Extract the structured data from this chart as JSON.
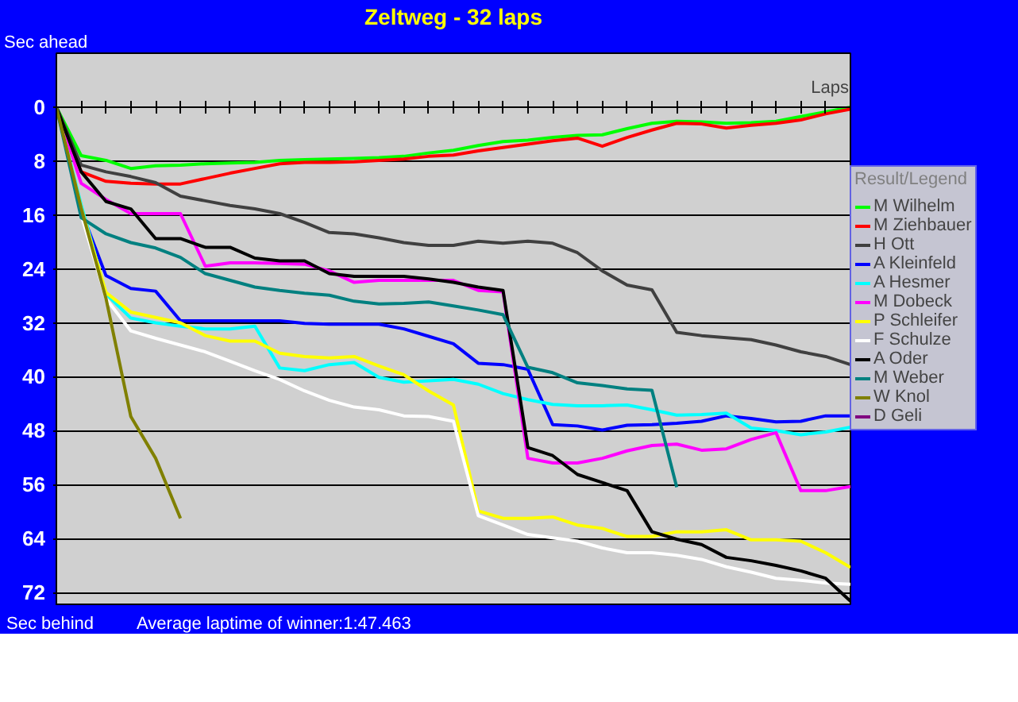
{
  "chart_data": {
    "type": "line",
    "title": "Zeltweg - 32 laps",
    "ylabel": "Sec ahead",
    "xlabel": "Laps",
    "legend_title": "Result/Legend",
    "annotations": [
      "Sec behind",
      "Average laptime of winner:1:47.463"
    ],
    "categories": [
      null,
      null,
      null,
      null,
      null,
      null,
      null,
      null,
      null,
      null,
      null,
      null,
      null,
      null,
      null,
      null,
      null,
      null,
      null,
      null,
      null,
      null,
      null,
      null,
      null,
      null,
      null,
      null,
      null,
      null,
      null,
      null,
      null
    ],
    "ylim": [
      74,
      -8
    ],
    "yticks": [
      0,
      8,
      16,
      24,
      32,
      40,
      48,
      56,
      64,
      72
    ],
    "grid": "y",
    "legend": "right",
    "tick_labels": "y",
    "marker": "none",
    "line_style": "solid",
    "series": [
      {
        "name": "M Wilhelm",
        "color": "#00ff00",
        "values": [
          0,
          7.2,
          7.9,
          9.1,
          8.7,
          8.6,
          8.4,
          8.3,
          8.2,
          7.9,
          7.8,
          7.7,
          7.6,
          7.5,
          7.3,
          6.8,
          6.4,
          5.7,
          5.1,
          4.9,
          4.5,
          4.2,
          4.1,
          3.2,
          2.4,
          2.1,
          2.2,
          2.4,
          2.3,
          2.1,
          1.4,
          0.7,
          0
        ]
      },
      {
        "name": "M Ziehbauer",
        "color": "#ff0000",
        "values": [
          0,
          9.6,
          11.0,
          11.3,
          11.4,
          11.4,
          10.6,
          9.8,
          9.1,
          8.4,
          8.2,
          8.2,
          8.1,
          7.9,
          7.7,
          7.3,
          7.1,
          6.5,
          6.0,
          5.5,
          5.0,
          4.6,
          5.8,
          4.5,
          3.4,
          2.4,
          2.5,
          3.1,
          2.7,
          2.4,
          1.9,
          1.0,
          0.3
        ]
      },
      {
        "name": "H Ott",
        "color": "#404040",
        "values": [
          0,
          8.6,
          9.6,
          10.3,
          11.2,
          13.2,
          13.9,
          14.6,
          15.1,
          15.8,
          17.1,
          18.6,
          18.8,
          19.4,
          20.1,
          20.5,
          20.5,
          19.9,
          20.2,
          19.9,
          20.2,
          21.6,
          24.3,
          26.4,
          27.1,
          33.4,
          33.9,
          34.2,
          34.5,
          35.3,
          36.3,
          37.0,
          38.2
        ]
      },
      {
        "name": "A Kleinfeld",
        "color": "#0000ff",
        "values": [
          0,
          15.4,
          25.0,
          26.9,
          27.3,
          31.7,
          31.7,
          31.7,
          31.7,
          31.7,
          32.1,
          32.2,
          32.2,
          32.2,
          32.9,
          34.0,
          35.1,
          38.0,
          38.2,
          38.9,
          47.1,
          47.3,
          47.9,
          47.2,
          47.1,
          46.9,
          46.6,
          45.8,
          46.2,
          46.7,
          46.6,
          45.8,
          45.8
        ]
      },
      {
        "name": "A Hesmer",
        "color": "#00ffff",
        "values": [
          0,
          14.5,
          27.7,
          31.3,
          32.0,
          32.5,
          32.9,
          32.9,
          32.5,
          38.7,
          39.1,
          38.2,
          37.9,
          40.1,
          40.8,
          40.6,
          40.4,
          41.1,
          42.5,
          43.4,
          44.1,
          44.3,
          44.3,
          44.2,
          44.9,
          45.7,
          45.6,
          45.4,
          47.6,
          48.0,
          48.6,
          48.2,
          47.5
        ]
      },
      {
        "name": "M Dobeck",
        "color": "#ff00ff",
        "values": [
          0,
          11.3,
          13.7,
          15.8,
          15.8,
          15.8,
          23.6,
          23.1,
          23.1,
          23.2,
          23.3,
          24.3,
          26.0,
          25.7,
          25.7,
          25.7,
          25.7,
          27.2,
          27.4,
          52.1,
          52.8,
          52.8,
          52.1,
          51.0,
          50.2,
          50.0,
          50.9,
          50.7,
          49.3,
          48.3,
          56.9,
          56.9,
          56.3
        ]
      },
      {
        "name": "P Schleifer",
        "color": "#ffff00",
        "values": [
          0,
          15,
          27.5,
          30.4,
          31.2,
          32.0,
          33.9,
          34.7,
          34.7,
          36.5,
          37.0,
          37.2,
          37.0,
          38.4,
          39.7,
          42.1,
          44.2,
          59.9,
          61.0,
          61.0,
          60.8,
          62.0,
          62.5,
          63.7,
          63.7,
          63.0,
          63.0,
          62.7,
          64.2,
          64.2,
          64.4,
          66.1,
          68.3
        ]
      },
      {
        "name": "F Schulze",
        "color": "#ffffff",
        "values": [
          0,
          16,
          28.4,
          33.2,
          34.3,
          35.3,
          36.3,
          37.7,
          39.1,
          40.4,
          42.1,
          43.5,
          44.5,
          44.9,
          45.8,
          45.9,
          46.6,
          60.6,
          62.0,
          63.4,
          63.9,
          64.4,
          65.4,
          66.1,
          66.1,
          66.5,
          67.1,
          68.2,
          69.0,
          69.9,
          70.2,
          70.6,
          70.8
        ]
      },
      {
        "name": "A Oder",
        "color": "#000000",
        "values": [
          0,
          9.6,
          14.0,
          15.1,
          19.5,
          19.5,
          20.8,
          20.8,
          22.4,
          22.8,
          22.8,
          24.7,
          25.1,
          25.1,
          25.1,
          25.5,
          26.0,
          26.7,
          27.2,
          50.5,
          51.7,
          54.5,
          55.7,
          56.9,
          63.0,
          64.1,
          64.9,
          66.8,
          67.3,
          68.0,
          68.8,
          69.9,
          73.3
        ]
      },
      {
        "name": "M Weber",
        "color": "#008080",
        "values": [
          0,
          16.4,
          18.8,
          20.1,
          20.9,
          22.3,
          24.7,
          25.7,
          26.7,
          27.2,
          27.6,
          27.9,
          28.8,
          29.2,
          29.1,
          28.9,
          29.5,
          30.1,
          30.8,
          38.6,
          39.4,
          40.9,
          41.3,
          41.8,
          42.0,
          56.4,
          null,
          null,
          null,
          null,
          null,
          null,
          null
        ]
      },
      {
        "name": "W Knol",
        "color": "#808000",
        "values": [
          0,
          15,
          28.4,
          45.9,
          52.1,
          61.0,
          null,
          null,
          null,
          null,
          null,
          null,
          null,
          null,
          null,
          null,
          null,
          null,
          null,
          null,
          null,
          null,
          null,
          null,
          null,
          null,
          null,
          null,
          null,
          null,
          null,
          null,
          null
        ]
      },
      {
        "name": "D Geli",
        "color": "#800080",
        "values": [
          null,
          null,
          null,
          null,
          null,
          null,
          null,
          null,
          null,
          null,
          null,
          null,
          null,
          null,
          null,
          null,
          null,
          null,
          null,
          null,
          null,
          null,
          null,
          null,
          null,
          null,
          null,
          null,
          null,
          null,
          null,
          null,
          null
        ]
      }
    ]
  }
}
